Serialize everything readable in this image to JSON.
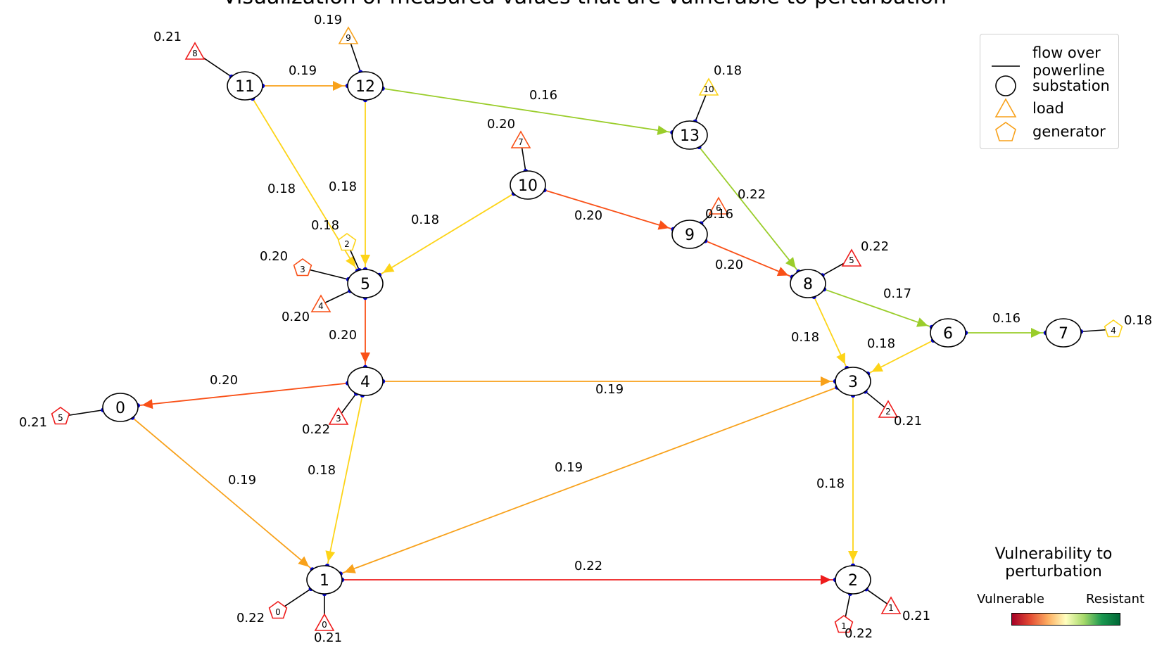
{
  "title": "Visualization of measured values that are vulnerable to perturbation",
  "colors": {
    "red": "#ee1c1c",
    "red_orange": "#f95017",
    "orange": "#f8a11a",
    "yellow": "#fdd418",
    "lime": "#9acd2a",
    "marker_fill": "#ffffff",
    "port_dot": "#0000cc",
    "edge_black": "#000000"
  },
  "legend": {
    "items": [
      {
        "label_line1": "flow over",
        "label_line2": "powerline",
        "icon": "line-icon"
      },
      {
        "label_line1": "substation",
        "icon": "circle-icon"
      },
      {
        "label_line1": "load",
        "icon": "triangle-icon"
      },
      {
        "label_line1": "generator",
        "icon": "pentagon-icon"
      }
    ]
  },
  "colorbar": {
    "title_line1": "Vulnerability to",
    "title_line2": "perturbation",
    "left_label": "Vulnerable",
    "right_label": "Resistant",
    "stops": [
      "#a50026",
      "#e34a33",
      "#fdae61",
      "#ffffbf",
      "#a6d96a",
      "#1a9850",
      "#006837"
    ]
  },
  "substations": [
    {
      "id": "0"
    },
    {
      "id": "1"
    },
    {
      "id": "2"
    },
    {
      "id": "3"
    },
    {
      "id": "4"
    },
    {
      "id": "5"
    },
    {
      "id": "6"
    },
    {
      "id": "7"
    },
    {
      "id": "8"
    },
    {
      "id": "9"
    },
    {
      "id": "10"
    },
    {
      "id": "11"
    },
    {
      "id": "12"
    },
    {
      "id": "13"
    }
  ],
  "lines": [
    {
      "from": "11",
      "to": "12",
      "value": "0.19",
      "color": "orange"
    },
    {
      "from": "12",
      "to": "13",
      "value": "0.16",
      "color": "lime"
    },
    {
      "from": "11",
      "to": "5",
      "value": "0.18",
      "color": "yellow"
    },
    {
      "from": "12",
      "to": "5",
      "value": "0.18",
      "color": "yellow"
    },
    {
      "from": "10",
      "to": "5",
      "value": "0.18",
      "color": "yellow"
    },
    {
      "from": "10",
      "to": "9",
      "value": "0.20",
      "color": "red_orange"
    },
    {
      "from": "13",
      "to": "8",
      "value": "0.22",
      "color": "lime"
    },
    {
      "from": "9",
      "to": "8",
      "value": "0.20",
      "color": "red_orange"
    },
    {
      "from": "8",
      "to": "6",
      "value": "0.17",
      "color": "lime"
    },
    {
      "from": "6",
      "to": "7",
      "value": "0.16",
      "color": "lime"
    },
    {
      "from": "8",
      "to": "3",
      "value": "0.18",
      "color": "yellow"
    },
    {
      "from": "6",
      "to": "3",
      "value": "0.18",
      "color": "yellow"
    },
    {
      "from": "5",
      "to": "4",
      "value": "0.20",
      "color": "red_orange"
    },
    {
      "from": "4",
      "to": "0",
      "value": "0.20",
      "color": "red_orange"
    },
    {
      "from": "4",
      "to": "3",
      "value": "0.19",
      "color": "orange"
    },
    {
      "from": "0",
      "to": "1",
      "value": "0.19",
      "color": "orange"
    },
    {
      "from": "4",
      "to": "1",
      "value": "0.18",
      "color": "yellow"
    },
    {
      "from": "3",
      "to": "1",
      "value": "0.19",
      "color": "orange"
    },
    {
      "from": "3",
      "to": "2",
      "value": "0.18",
      "color": "yellow"
    },
    {
      "from": "1",
      "to": "2",
      "value": "0.22",
      "color": "red"
    }
  ],
  "loads": [
    {
      "id": "0",
      "bus": "1",
      "value": "0.21",
      "color": "red"
    },
    {
      "id": "1",
      "bus": "2",
      "value": "0.21",
      "color": "red"
    },
    {
      "id": "2",
      "bus": "3",
      "value": "0.21",
      "color": "red"
    },
    {
      "id": "3",
      "bus": "4",
      "value": "0.22",
      "color": "red"
    },
    {
      "id": "4",
      "bus": "5",
      "value": "0.20",
      "color": "red_orange"
    },
    {
      "id": "5",
      "bus": "8",
      "value": "0.22",
      "color": "red"
    },
    {
      "id": "6",
      "bus": "9",
      "value": "0.16",
      "color": "red_orange"
    },
    {
      "id": "7",
      "bus": "10",
      "value": "0.20",
      "color": "red_orange"
    },
    {
      "id": "8",
      "bus": "11",
      "value": "0.21",
      "color": "red"
    },
    {
      "id": "9",
      "bus": "12",
      "value": "0.19",
      "color": "orange"
    },
    {
      "id": "10",
      "bus": "13",
      "value": "0.18",
      "color": "yellow"
    }
  ],
  "generators": [
    {
      "id": "0",
      "bus": "1",
      "value": "0.22",
      "color": "red"
    },
    {
      "id": "1",
      "bus": "2",
      "value": "0.22",
      "color": "red"
    },
    {
      "id": "2",
      "bus": "5",
      "value": "0.18",
      "color": "yellow"
    },
    {
      "id": "3",
      "bus": "5",
      "value": "0.20",
      "color": "red_orange"
    },
    {
      "id": "4",
      "bus": "7",
      "value": "0.18",
      "color": "yellow"
    },
    {
      "id": "5",
      "bus": "0",
      "value": "0.21",
      "color": "red"
    }
  ]
}
